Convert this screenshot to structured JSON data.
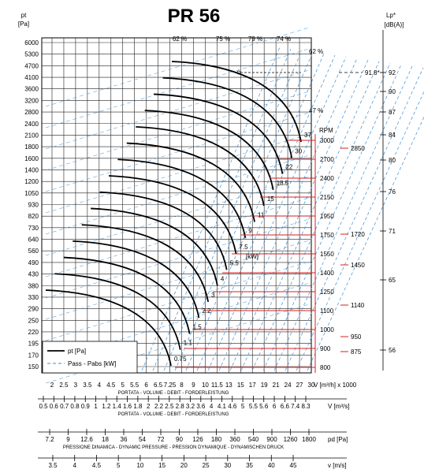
{
  "chart_data": {
    "type": "line",
    "title": "PR 56",
    "y_left_label": "pt\n[Pa]",
    "y_left_label_line1": "pt",
    "y_left_label_line2": "[Pa]",
    "y_left_ticks": [
      6000,
      5300,
      4700,
      4100,
      3600,
      3200,
      2800,
      2400,
      2100,
      1800,
      1600,
      1400,
      1200,
      1050,
      930,
      820,
      730,
      640,
      560,
      490,
      430,
      380,
      330,
      290,
      250,
      220,
      195,
      170,
      150
    ],
    "x_volume_label": "V [m³/h] x 1000",
    "x_volume_ticks": [
      "2",
      "2.5",
      "3",
      "3.5",
      "4",
      "4.5",
      "5",
      "5.5",
      "6",
      "6.5",
      "7.25",
      "8",
      "9",
      "10",
      "11.5",
      "13",
      "15",
      "17",
      "19",
      "21",
      "24",
      "27",
      "30"
    ],
    "x_volume_caption": "PORTATA - VOLUME - DEBIT - FORDERLEISTUNG",
    "axis_m3s_label": "V  [m³/s]",
    "axis_m3s_ticks": [
      "0.5",
      "0.6",
      "0.7",
      "0.8",
      "0.9",
      "1",
      "1.2",
      "1.4",
      "1.6",
      "1.8",
      "2",
      "2.2",
      "2.5",
      "2.8",
      "3.2",
      "3.6",
      "4",
      "4.1",
      "4.6",
      "5",
      "5.5",
      "5.6",
      "6",
      "6.6",
      "7.4",
      "8.3"
    ],
    "axis_m3s_caption": "PORTATA - VOLUME - DEBIT - FORDERLEISTUNG",
    "axis_pd_label": "pd  [Pa]",
    "axis_pd_ticks": [
      "7.2",
      "9",
      "12.6",
      "18",
      "36",
      "54",
      "72",
      "90",
      "126",
      "180",
      "360",
      "540",
      "900",
      "1260",
      "1800"
    ],
    "axis_pd_caption": "PRESSIONE DINAMICA - DYNAMIC PRESSURE - PRESSION DYNAMIQUE - DYNAMISCHEN DRUCK",
    "axis_v_label": "v  [m/s]",
    "axis_v_ticks": [
      "3.5",
      "4",
      "4.5",
      "5",
      "10",
      "15",
      "20",
      "25",
      "30",
      "35",
      "40",
      "45"
    ],
    "rpm_label": "RPM",
    "rpm_ticks": [
      3000,
      2700,
      2400,
      2150,
      1950,
      1750,
      1550,
      1400,
      1250,
      1100,
      1000,
      900,
      800
    ],
    "rpm_red_values": [
      "2850",
      "1720",
      "1450",
      "1140",
      "950",
      "875"
    ],
    "lp_label_line1": "Lp*",
    "lp_label_line2": "[dB(A)]",
    "lp_ticks": [
      92,
      90,
      87,
      84,
      80,
      76,
      71,
      65,
      56
    ],
    "lp_marker": "91.8*",
    "efficiency_labels_top": [
      "62 %",
      "75 %",
      "79 %",
      "74 %"
    ],
    "efficiency_labels_right": [
      "62 %",
      "47 %"
    ],
    "power_label": "[kW]",
    "power_values": [
      "37",
      "30",
      "22",
      "18.5",
      "15",
      "11",
      "9",
      "7.5",
      "5.5",
      "4",
      "3",
      "2.2",
      "1.5",
      "1.1",
      "0.75"
    ],
    "legend": [
      {
        "name": "pt [Pa]",
        "style": "solid",
        "color": "#000000"
      },
      {
        "name": "Pass - Pabs [kW]",
        "style": "dashed",
        "color": "#3a8fd6"
      }
    ],
    "colors": {
      "curve": "#000000",
      "power_lines": "#3a8fd6",
      "rpm_lines": "#d42020",
      "grid": "#000000"
    }
  }
}
